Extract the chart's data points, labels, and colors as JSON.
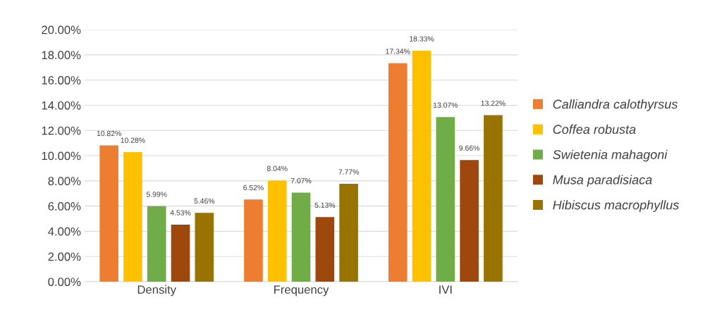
{
  "chart_data": {
    "type": "bar",
    "categories": [
      "Density",
      "Frequency",
      "IVI"
    ],
    "series": [
      {
        "name": "Calliandra calothyrsus",
        "color": "#ed7d31",
        "values": [
          10.82,
          6.52,
          17.34
        ],
        "value_labels": [
          "10.82%",
          "6.52%",
          "17.34%"
        ]
      },
      {
        "name": "Coffea robusta",
        "color": "#ffc000",
        "values": [
          10.28,
          8.04,
          18.33
        ],
        "value_labels": [
          "10.28%",
          "8.04%",
          "18.33%"
        ]
      },
      {
        "name": "Swietenia mahagoni",
        "color": "#70ad47",
        "values": [
          5.99,
          7.07,
          13.07
        ],
        "value_labels": [
          "5.99%",
          "7.07%",
          "13.07%"
        ]
      },
      {
        "name": "Musa paradisiaca",
        "color": "#9e480e",
        "values": [
          4.53,
          5.13,
          9.66
        ],
        "value_labels": [
          "4.53%",
          "5.13%",
          "9.66%"
        ]
      },
      {
        "name": "Hibiscus macrophyllus",
        "color": "#997300",
        "values": [
          5.46,
          7.77,
          13.22
        ],
        "value_labels": [
          "5.46%",
          "7.77%",
          "13.22%"
        ]
      }
    ],
    "ylim": [
      0,
      20
    ],
    "yticks": [
      {
        "value": 0,
        "label": "0.00%"
      },
      {
        "value": 2,
        "label": "2.00%"
      },
      {
        "value": 4,
        "label": "4.00%"
      },
      {
        "value": 6,
        "label": "6.00%"
      },
      {
        "value": 8,
        "label": "8.00%"
      },
      {
        "value": 10,
        "label": "10.00%"
      },
      {
        "value": 12,
        "label": "12.00%"
      },
      {
        "value": 14,
        "label": "14.00%"
      },
      {
        "value": 16,
        "label": "16.00%"
      },
      {
        "value": 18,
        "label": "18.00%"
      },
      {
        "value": 20,
        "label": "20.00%"
      }
    ],
    "grid": "y",
    "legend": "right"
  }
}
